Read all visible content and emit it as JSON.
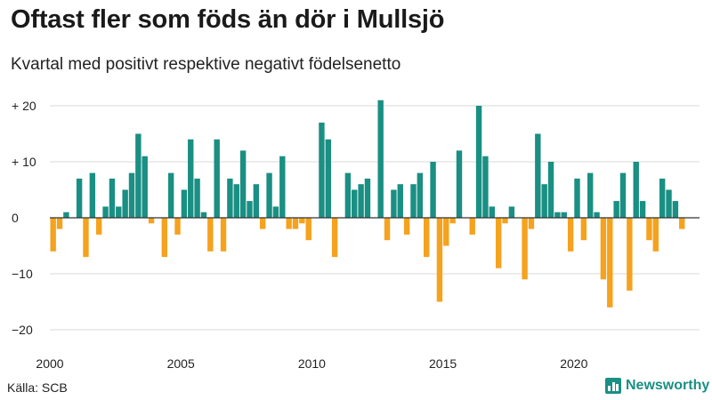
{
  "header": {
    "title": "Oftast fler som föds än dör i Mullsjö",
    "subtitle": "Kvartal med positivt respektive negativt födelsenetto"
  },
  "footer": {
    "source": "Källa: SCB",
    "brand": "Newsworthy"
  },
  "colors": {
    "positive": "#1a8f83",
    "negative": "#f5a21e",
    "grid": "#d9d9d9",
    "axis": "#333333",
    "brand": "#1a8f83"
  },
  "chart_data": {
    "type": "bar",
    "title": "Oftast fler som föds än dör i Mullsjö",
    "subtitle": "Kvartal med positivt respektive negativt födelsenetto",
    "xlabel": "",
    "ylabel": "",
    "ylim": [
      -20,
      21
    ],
    "grid": true,
    "start_year": 2000,
    "periods_per_year": 4,
    "yticks": [
      {
        "value": 20,
        "label": "+ 20"
      },
      {
        "value": 10,
        "label": "+ 10"
      },
      {
        "value": 0,
        "label": "0"
      },
      {
        "value": -10,
        "label": "−10"
      },
      {
        "value": -20,
        "label": "−20"
      }
    ],
    "xticks": [
      {
        "year": 2000,
        "label": "2000"
      },
      {
        "year": 2005,
        "label": "2005"
      },
      {
        "year": 2010,
        "label": "2010"
      },
      {
        "year": 2015,
        "label": "2015"
      },
      {
        "year": 2020,
        "label": "2020"
      }
    ],
    "values": [
      -6,
      -2,
      1,
      0,
      7,
      -7,
      8,
      -3,
      2,
      7,
      2,
      5,
      8,
      15,
      11,
      -1,
      0,
      -7,
      8,
      -3,
      5,
      14,
      7,
      1,
      -6,
      14,
      -6,
      7,
      6,
      12,
      3,
      6,
      -2,
      8,
      2,
      11,
      -2,
      -2,
      -1,
      -4,
      0,
      17,
      14,
      -7,
      0,
      8,
      5,
      6,
      7,
      0,
      21,
      -4,
      5,
      6,
      -3,
      6,
      8,
      -7,
      10,
      -15,
      -5,
      -1,
      12,
      0,
      -3,
      20,
      11,
      2,
      -9,
      -1,
      2,
      0,
      -11,
      -2,
      15,
      6,
      10,
      1,
      1,
      -6,
      7,
      -4,
      8,
      1,
      -11,
      -16,
      3,
      8,
      -13,
      10,
      3,
      -4,
      -6,
      7,
      5,
      3,
      -2
    ]
  }
}
